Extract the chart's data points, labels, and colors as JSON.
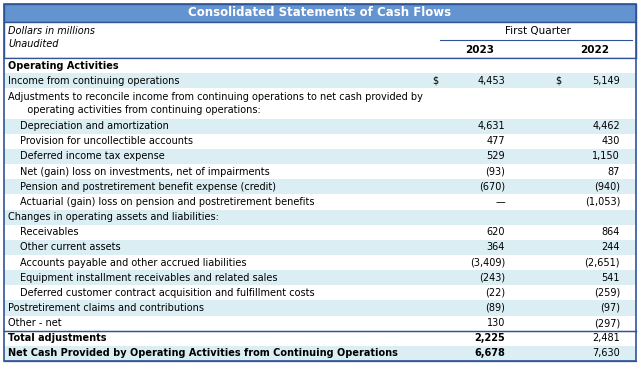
{
  "title": "Consolidated Statements of Cash Flows",
  "title_bg": "#6494CF",
  "title_color": "#FFFFFF",
  "header1": "Dollars in millions",
  "header2": "Unaudited",
  "col_header": "First Quarter",
  "col_years": [
    "2023",
    "2022"
  ],
  "rows": [
    {
      "label": "Operating Activities",
      "val2023": "",
      "val2022": "",
      "bold": true,
      "indent": 0,
      "bg": "#FFFFFF",
      "border_top": true,
      "border_bottom": false
    },
    {
      "label": "Income from continuing operations",
      "val2023": "4,453",
      "val2022": "5,149",
      "bold": false,
      "indent": 0,
      "bg": "#DAEEF3",
      "dollar": true,
      "border_top": false,
      "border_bottom": false
    },
    {
      "label": "Adjustments to reconcile income from continuing operations to net cash provided by operating activities from continuing operations:",
      "val2023": "",
      "val2022": "",
      "bold": false,
      "indent": 0,
      "bg": "#FFFFFF",
      "multiline": true,
      "border_top": false,
      "border_bottom": false
    },
    {
      "label": "Depreciation and amortization",
      "val2023": "4,631",
      "val2022": "4,462",
      "bold": false,
      "indent": 1,
      "bg": "#DAEEF3",
      "border_top": false,
      "border_bottom": false
    },
    {
      "label": "Provision for uncollectible accounts",
      "val2023": "477",
      "val2022": "430",
      "bold": false,
      "indent": 1,
      "bg": "#FFFFFF",
      "border_top": false,
      "border_bottom": false
    },
    {
      "label": "Deferred income tax expense",
      "val2023": "529",
      "val2022": "1,150",
      "bold": false,
      "indent": 1,
      "bg": "#DAEEF3",
      "border_top": false,
      "border_bottom": false
    },
    {
      "label": "Net (gain) loss on investments, net of impairments",
      "val2023": "(93)",
      "val2022": "87",
      "bold": false,
      "indent": 1,
      "bg": "#FFFFFF",
      "border_top": false,
      "border_bottom": false
    },
    {
      "label": "Pension and postretirement benefit expense (credit)",
      "val2023": "(670)",
      "val2022": "(940)",
      "bold": false,
      "indent": 1,
      "bg": "#DAEEF3",
      "border_top": false,
      "border_bottom": false
    },
    {
      "label": "Actuarial (gain) loss on pension and postretirement benefits",
      "val2023": "—",
      "val2022": "(1,053)",
      "bold": false,
      "indent": 1,
      "bg": "#FFFFFF",
      "border_top": false,
      "border_bottom": false
    },
    {
      "label": "Changes in operating assets and liabilities:",
      "val2023": "",
      "val2022": "",
      "bold": false,
      "indent": 0,
      "bg": "#DAEEF3",
      "border_top": false,
      "border_bottom": false
    },
    {
      "label": "Receivables",
      "val2023": "620",
      "val2022": "864",
      "bold": false,
      "indent": 1,
      "bg": "#FFFFFF",
      "border_top": false,
      "border_bottom": false
    },
    {
      "label": "Other current assets",
      "val2023": "364",
      "val2022": "244",
      "bold": false,
      "indent": 1,
      "bg": "#DAEEF3",
      "border_top": false,
      "border_bottom": false
    },
    {
      "label": "Accounts payable and other accrued liabilities",
      "val2023": "(3,409)",
      "val2022": "(2,651)",
      "bold": false,
      "indent": 1,
      "bg": "#FFFFFF",
      "border_top": false,
      "border_bottom": false
    },
    {
      "label": "Equipment installment receivables and related sales",
      "val2023": "(243)",
      "val2022": "541",
      "bold": false,
      "indent": 1,
      "bg": "#DAEEF3",
      "border_top": false,
      "border_bottom": false
    },
    {
      "label": "Deferred customer contract acquisition and fulfillment costs",
      "val2023": "(22)",
      "val2022": "(259)",
      "bold": false,
      "indent": 1,
      "bg": "#FFFFFF",
      "border_top": false,
      "border_bottom": false
    },
    {
      "label": "Postretirement claims and contributions",
      "val2023": "(89)",
      "val2022": "(97)",
      "bold": false,
      "indent": 0,
      "bg": "#DAEEF3",
      "border_top": false,
      "border_bottom": false
    },
    {
      "label": "Other - net",
      "val2023": "130",
      "val2022": "(297)",
      "bold": false,
      "indent": 0,
      "bg": "#FFFFFF",
      "border_top": false,
      "border_bottom": true
    },
    {
      "label": "Total adjustments",
      "val2023": "2,225",
      "val2022": "2,481",
      "bold": true,
      "indent": 0,
      "bg": "#FFFFFF",
      "border_top": true,
      "border_bottom": false
    },
    {
      "label": "Net Cash Provided by Operating Activities from Continuing Operations",
      "val2023": "6,678",
      "val2022": "7,630",
      "bold": true,
      "indent": 0,
      "bg": "#DAEEF3",
      "border_top": false,
      "border_bottom": true
    }
  ],
  "fig_bg": "#FFFFFF",
  "border_color": "#2F5597",
  "text_color": "#000000",
  "font_size": 7.0,
  "title_font_size": 8.5
}
